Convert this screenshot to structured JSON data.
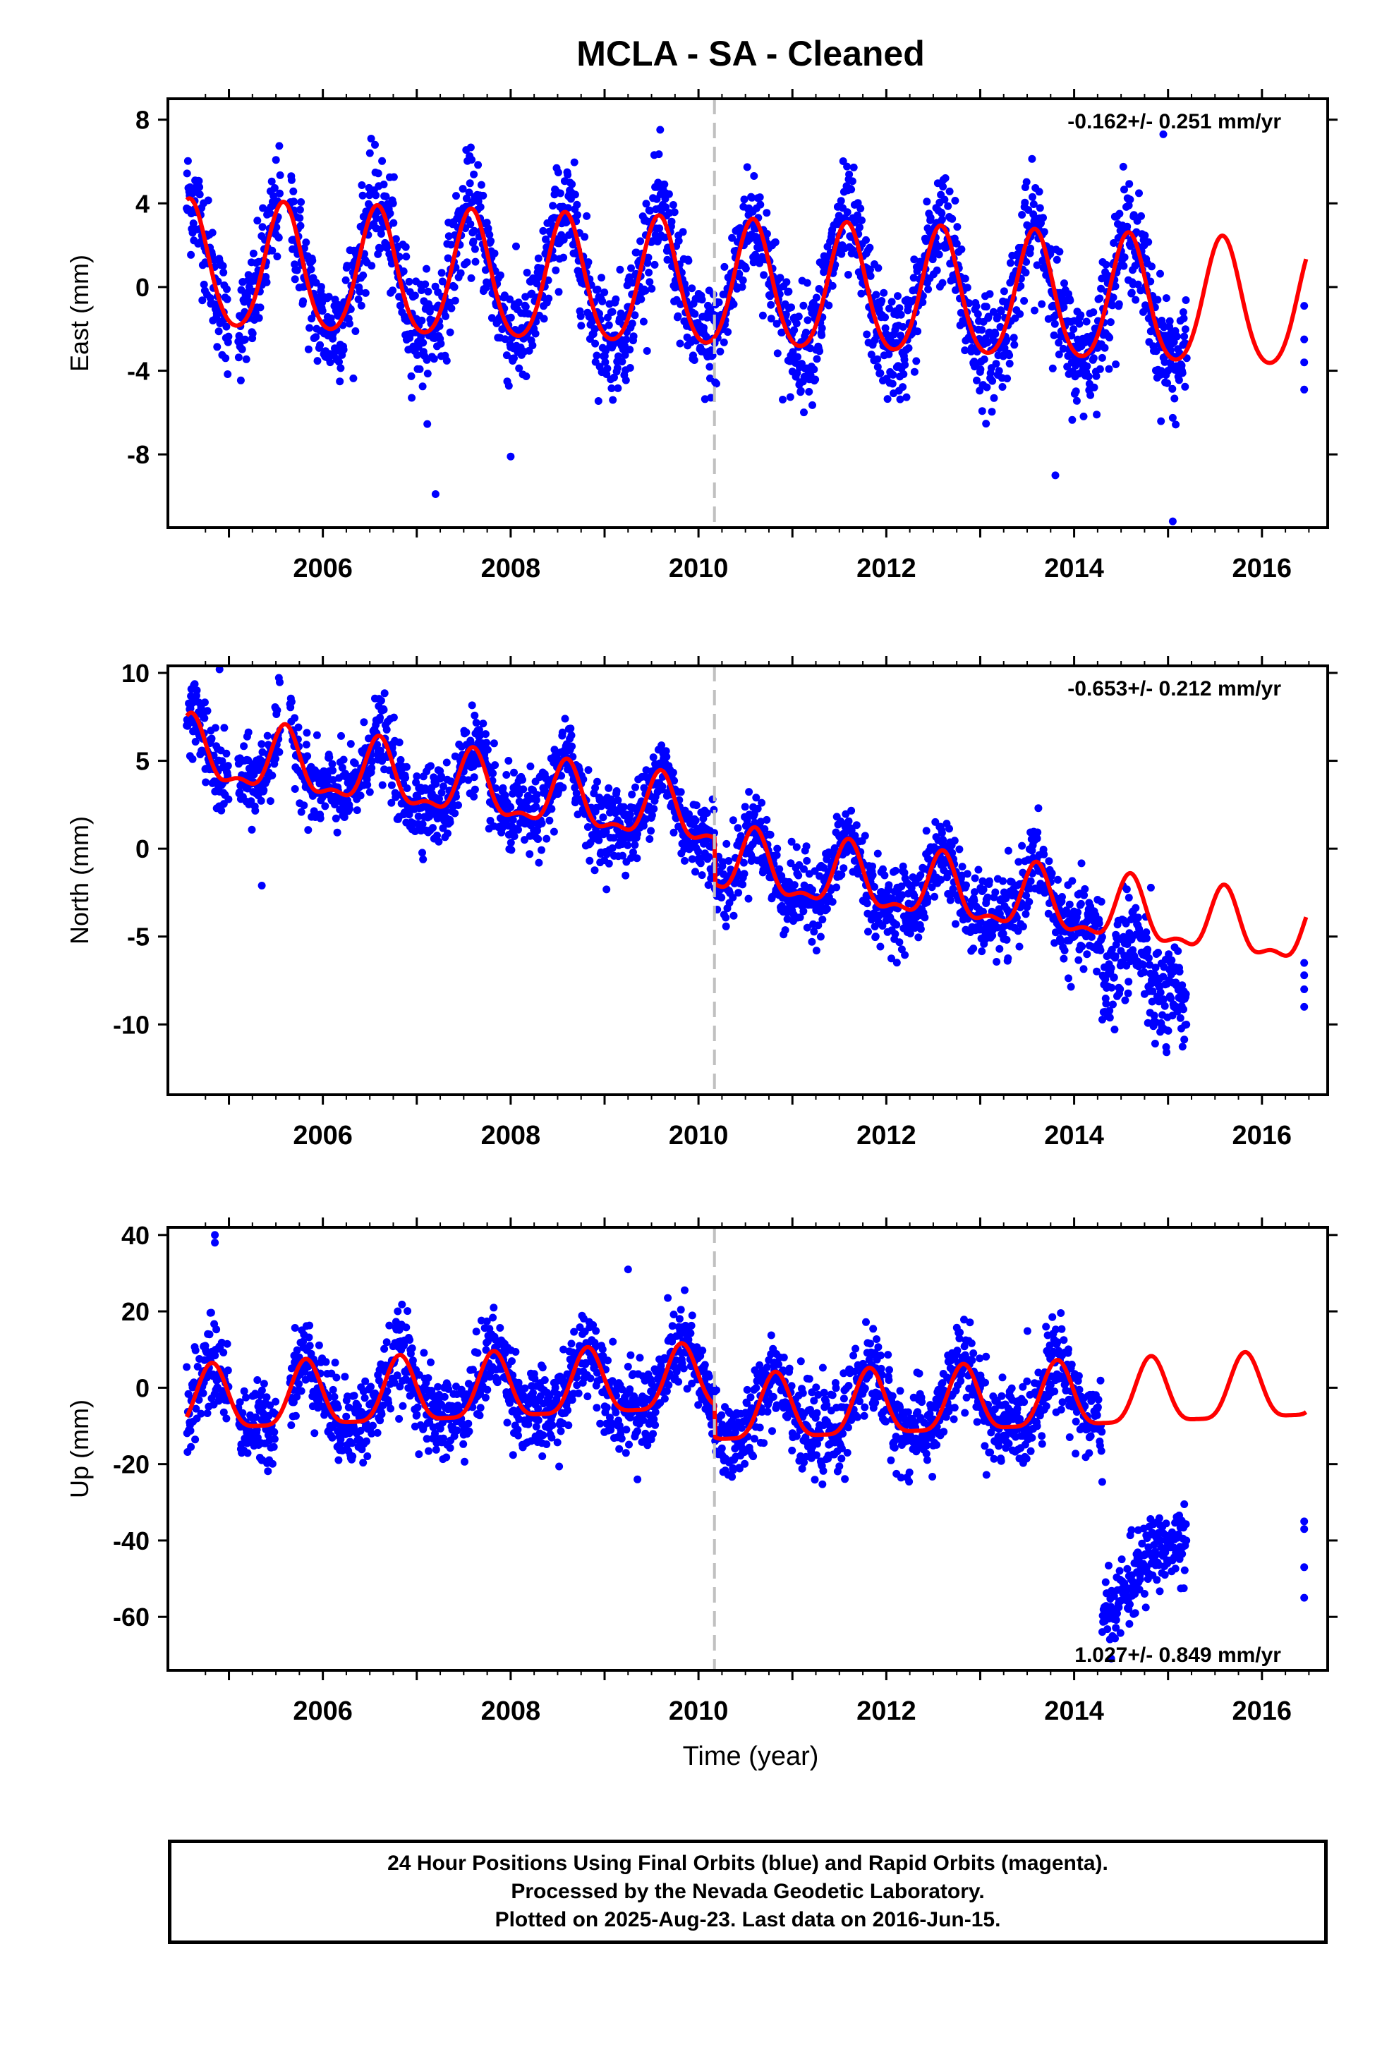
{
  "title": "MCLA  - SA - Cleaned",
  "x_axis_label": "Time (year)",
  "x_ticks": [
    "2006",
    "2008",
    "2010",
    "2012",
    "2014",
    "2016"
  ],
  "footer": {
    "line1": "24 Hour Positions Using Final Orbits (blue) and Rapid Orbits (magenta).",
    "line2": "Processed by the Nevada Geodetic Laboratory.",
    "line3": "Plotted on 2025-Aug-23. Last data on 2016-Jun-15."
  },
  "colors": {
    "points": "#0000ff",
    "model": "#ff0000",
    "marker": "#c0c0c0"
  },
  "chart_data": [
    {
      "type": "scatter",
      "ylabel": "East (mm)",
      "rate_text": "-0.162+/- 0.251 mm/yr",
      "rate_position": "top-right",
      "xlim": [
        2004.35,
        2016.7
      ],
      "ylim": [
        -11.5,
        9
      ],
      "y_ticks": [
        8,
        4,
        0,
        -4,
        -8
      ],
      "x_ticks": [
        2006,
        2008,
        2010,
        2012,
        2014,
        2016
      ],
      "marker_x": 2010.17,
      "model": {
        "mean": 0.9,
        "trend": -0.162,
        "t0": 2004.5,
        "amp": 3.0,
        "amp_growth": 0.0,
        "phase_peak": 0.58,
        "semi_amp": 0.35,
        "steps": [],
        "range": [
          2004.55,
          2016.47
        ]
      },
      "data_segments": [
        [
          2004.55,
          2005.0
        ],
        [
          2005.1,
          2005.55
        ],
        [
          2005.65,
          2015.2
        ]
      ],
      "extra_points": [
        [
          2016.45,
          -0.9
        ],
        [
          2016.45,
          -2.5
        ],
        [
          2016.45,
          -3.6
        ],
        [
          2016.45,
          -4.9
        ],
        [
          2007.2,
          -9.9
        ],
        [
          2008.0,
          -8.1
        ],
        [
          2013.8,
          -9.0
        ],
        [
          2014.95,
          7.3
        ],
        [
          2015.05,
          -11.2
        ]
      ],
      "noise": 1.3
    },
    {
      "type": "scatter",
      "ylabel": "North (mm)",
      "rate_text": "-0.653+/- 0.212 mm/yr",
      "rate_position": "top-right",
      "xlim": [
        2004.35,
        2016.7
      ],
      "ylim": [
        -14,
        10.4
      ],
      "y_ticks": [
        10,
        5,
        0,
        -5,
        -10
      ],
      "x_ticks": [
        2006,
        2008,
        2010,
        2012,
        2014,
        2016
      ],
      "marker_x": 2010.17,
      "model": {
        "mean": 5.4,
        "trend": -0.653,
        "t0": 2004.5,
        "amp": 1.7,
        "amp_growth": 0.0,
        "phase_peak": 0.6,
        "semi_amp": 0.7,
        "steps": [
          [
            2010.17,
            -2.6
          ]
        ],
        "range": [
          2004.55,
          2016.47
        ]
      },
      "data_segments": [
        [
          2004.55,
          2005.0
        ],
        [
          2005.1,
          2005.55
        ],
        [
          2005.65,
          2014.3
        ]
      ],
      "late_offset": {
        "from": 2014.3,
        "to": 2015.2,
        "shift": -3.5
      },
      "extra_points": [
        [
          2016.45,
          -6.5
        ],
        [
          2016.45,
          -7.2
        ],
        [
          2016.45,
          -8.0
        ],
        [
          2016.45,
          -9.0
        ],
        [
          2004.9,
          10.2
        ],
        [
          2005.35,
          -2.1
        ]
      ],
      "noise": 1.1
    },
    {
      "type": "scatter",
      "ylabel": "Up (mm)",
      "rate_text": "1.027+/- 0.849 mm/yr",
      "rate_position": "bottom-right",
      "xlim": [
        2004.35,
        2016.7
      ],
      "ylim": [
        -74,
        42
      ],
      "y_ticks": [
        40,
        20,
        0,
        -20,
        -40,
        -60
      ],
      "x_ticks": [
        2006,
        2008,
        2010,
        2012,
        2014,
        2016
      ],
      "marker_x": 2010.17,
      "model": {
        "mean": -4.5,
        "trend": 1.027,
        "t0": 2004.5,
        "amp": 8.5,
        "amp_growth": 0.0,
        "phase_peak": 0.82,
        "semi_amp": 2.2,
        "steps": [
          [
            2010.17,
            -8.5
          ]
        ],
        "range": [
          2004.55,
          2016.47
        ]
      },
      "data_segments": [
        [
          2004.55,
          2005.0
        ],
        [
          2005.1,
          2005.5
        ],
        [
          2005.65,
          2014.3
        ]
      ],
      "cluster": {
        "from": 2014.3,
        "to": 2015.2,
        "start": -62,
        "end": -42,
        "spread": 5
      },
      "extra_points": [
        [
          2016.45,
          -35
        ],
        [
          2016.45,
          -37
        ],
        [
          2016.45,
          -47
        ],
        [
          2016.45,
          -55
        ],
        [
          2004.85,
          40
        ],
        [
          2004.85,
          38
        ],
        [
          2009.25,
          31
        ],
        [
          2009.35,
          -24
        ],
        [
          2005.35,
          -19
        ]
      ],
      "noise": 5.5
    }
  ]
}
